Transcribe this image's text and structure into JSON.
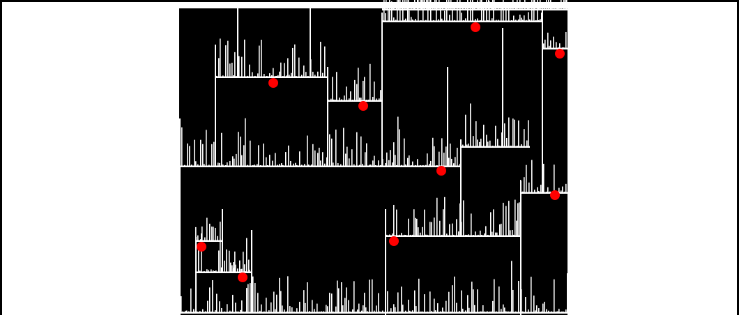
{
  "image": {
    "kind": "segmented-noise-visualization",
    "panel_color": "#000000",
    "signal_color": "#ffffff",
    "marker_color": "#ff0000",
    "frame_color": "#000000",
    "page_background": "#ffffff"
  },
  "caption": "",
  "markers": [
    {
      "id": 1
    },
    {
      "id": 2
    },
    {
      "id": 3
    },
    {
      "id": 4
    },
    {
      "id": 5
    },
    {
      "id": 6
    },
    {
      "id": 7
    },
    {
      "id": 8
    },
    {
      "id": 9
    },
    {
      "id": 10
    }
  ]
}
